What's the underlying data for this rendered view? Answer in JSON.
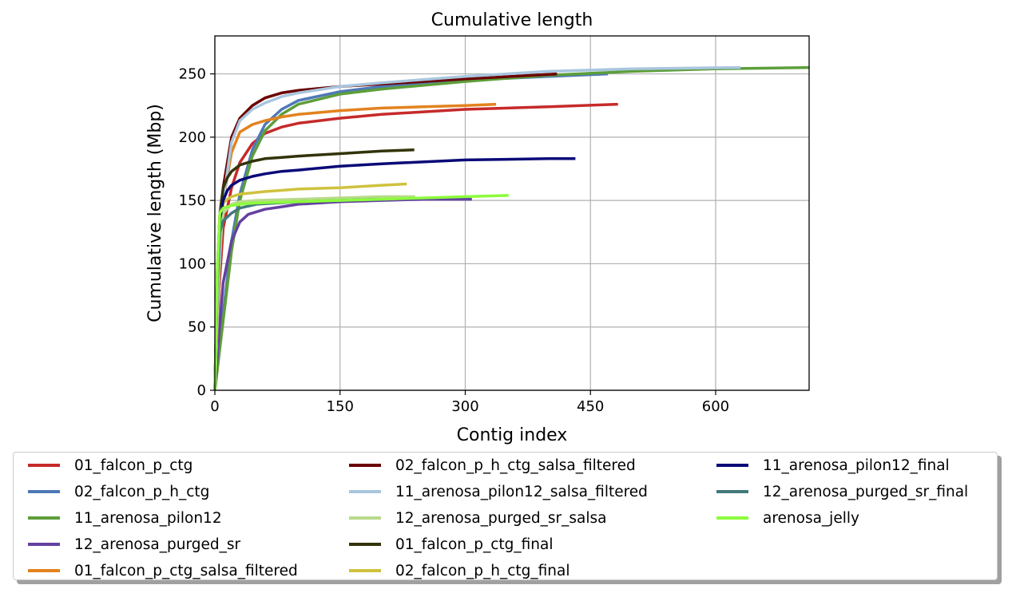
{
  "chart_data": {
    "type": "line",
    "title": "Cumulative length",
    "xlabel": "Contig index",
    "ylabel": "Cumulative length (Mbp)",
    "xlim": [
      0,
      712
    ],
    "ylim": [
      0,
      280
    ],
    "xticks": [
      0,
      150,
      300,
      450,
      600
    ],
    "yticks": [
      0,
      50,
      100,
      150,
      200,
      250
    ],
    "grid": true,
    "legend_position": "below",
    "series": [
      {
        "name": "01_falcon_p_ctg",
        "color": "#c62a2a",
        "x": [
          0,
          5,
          10,
          20,
          30,
          45,
          60,
          80,
          100,
          150,
          200,
          300,
          400,
          483
        ],
        "y": [
          0,
          80,
          128,
          160,
          180,
          195,
          203,
          208,
          211,
          215,
          218,
          222,
          224,
          226
        ]
      },
      {
        "name": "02_falcon_p_h_ctg",
        "color": "#4e79b7",
        "x": [
          0,
          10,
          20,
          30,
          45,
          60,
          80,
          100,
          150,
          200,
          300,
          400,
          471
        ],
        "y": [
          0,
          60,
          118,
          155,
          190,
          210,
          222,
          229,
          236,
          240,
          245,
          248,
          250
        ]
      },
      {
        "name": "11_arenosa_pilon12",
        "color": "#5d9e3a",
        "x": [
          0,
          10,
          20,
          30,
          45,
          60,
          80,
          100,
          150,
          200,
          300,
          400,
          500,
          600,
          712
        ],
        "y": [
          0,
          55,
          110,
          150,
          185,
          205,
          218,
          226,
          234,
          238,
          244,
          249,
          252,
          254,
          255
        ]
      },
      {
        "name": "12_arenosa_purged_sr",
        "color": "#6440a0",
        "x": [
          0,
          5,
          10,
          20,
          30,
          40,
          60,
          80,
          100,
          150,
          200,
          250,
          308
        ],
        "y": [
          0,
          45,
          85,
          118,
          133,
          139,
          143,
          145,
          147,
          149,
          150,
          151,
          151
        ]
      },
      {
        "name": "01_falcon_p_ctg_salsa_filtered",
        "color": "#e3821f",
        "x": [
          0,
          5,
          10,
          20,
          30,
          45,
          60,
          80,
          100,
          150,
          200,
          250,
          300,
          337
        ],
        "y": [
          0,
          90,
          150,
          188,
          204,
          210,
          213,
          216,
          218,
          221,
          223,
          224,
          225,
          226
        ]
      },
      {
        "name": "02_falcon_p_h_ctg_salsa_filtered",
        "color": "#6b0000",
        "x": [
          0,
          5,
          10,
          20,
          30,
          45,
          60,
          80,
          100,
          150,
          200,
          300,
          410
        ],
        "y": [
          0,
          100,
          160,
          200,
          215,
          225,
          231,
          235,
          237,
          240,
          242,
          246,
          250
        ]
      },
      {
        "name": "11_arenosa_pilon12_salsa_filtered",
        "color": "#a8c6de",
        "x": [
          0,
          5,
          10,
          20,
          30,
          45,
          60,
          80,
          100,
          150,
          200,
          300,
          400,
          500,
          630
        ],
        "y": [
          0,
          95,
          150,
          196,
          213,
          222,
          227,
          232,
          235,
          240,
          243,
          248,
          252,
          254,
          255
        ]
      },
      {
        "name": "12_arenosa_purged_sr_salsa",
        "color": "#b9da8a",
        "x": [
          0,
          5,
          10,
          20,
          30,
          50,
          100,
          150,
          200,
          240
        ],
        "y": [
          0,
          110,
          140,
          147,
          149,
          150,
          151,
          152,
          153,
          153
        ]
      },
      {
        "name": "01_falcon_p_ctg_final",
        "color": "#33330a",
        "x": [
          0,
          3,
          6,
          10,
          15,
          20,
          30,
          45,
          60,
          80,
          100,
          150,
          200,
          239
        ],
        "y": [
          0,
          95,
          140,
          160,
          168,
          173,
          178,
          181,
          183,
          184,
          185,
          187,
          189,
          190
        ]
      },
      {
        "name": "02_falcon_p_h_ctg_final",
        "color": "#cfc23e",
        "x": [
          0,
          3,
          6,
          10,
          15,
          20,
          30,
          45,
          60,
          80,
          100,
          150,
          200,
          230
        ],
        "y": [
          0,
          90,
          140,
          148,
          151,
          153,
          155,
          156,
          157,
          158,
          159,
          160,
          162,
          163
        ]
      },
      {
        "name": "11_arenosa_pilon12_final",
        "color": "#0a0a78",
        "x": [
          0,
          3,
          6,
          10,
          15,
          20,
          30,
          45,
          60,
          80,
          100,
          150,
          200,
          300,
          400,
          432
        ],
        "y": [
          0,
          90,
          135,
          150,
          158,
          162,
          166,
          169,
          171,
          173,
          174,
          177,
          179,
          182,
          183,
          183
        ]
      },
      {
        "name": "12_arenosa_purged_sr_final",
        "color": "#427a7a",
        "x": [
          0,
          3,
          6,
          10,
          15,
          20,
          30,
          50,
          100,
          150,
          197
        ],
        "y": [
          0,
          85,
          125,
          134,
          137,
          140,
          144,
          147,
          149,
          150,
          151
        ]
      },
      {
        "name": "arenosa_jelly",
        "color": "#8cfc3c",
        "x": [
          0,
          3,
          6,
          10,
          15,
          20,
          30,
          50,
          100,
          150,
          200,
          250,
          300,
          352
        ],
        "y": [
          0,
          95,
          140,
          144,
          145,
          146,
          147,
          148,
          149,
          150,
          151,
          152,
          153,
          154
        ]
      }
    ]
  }
}
